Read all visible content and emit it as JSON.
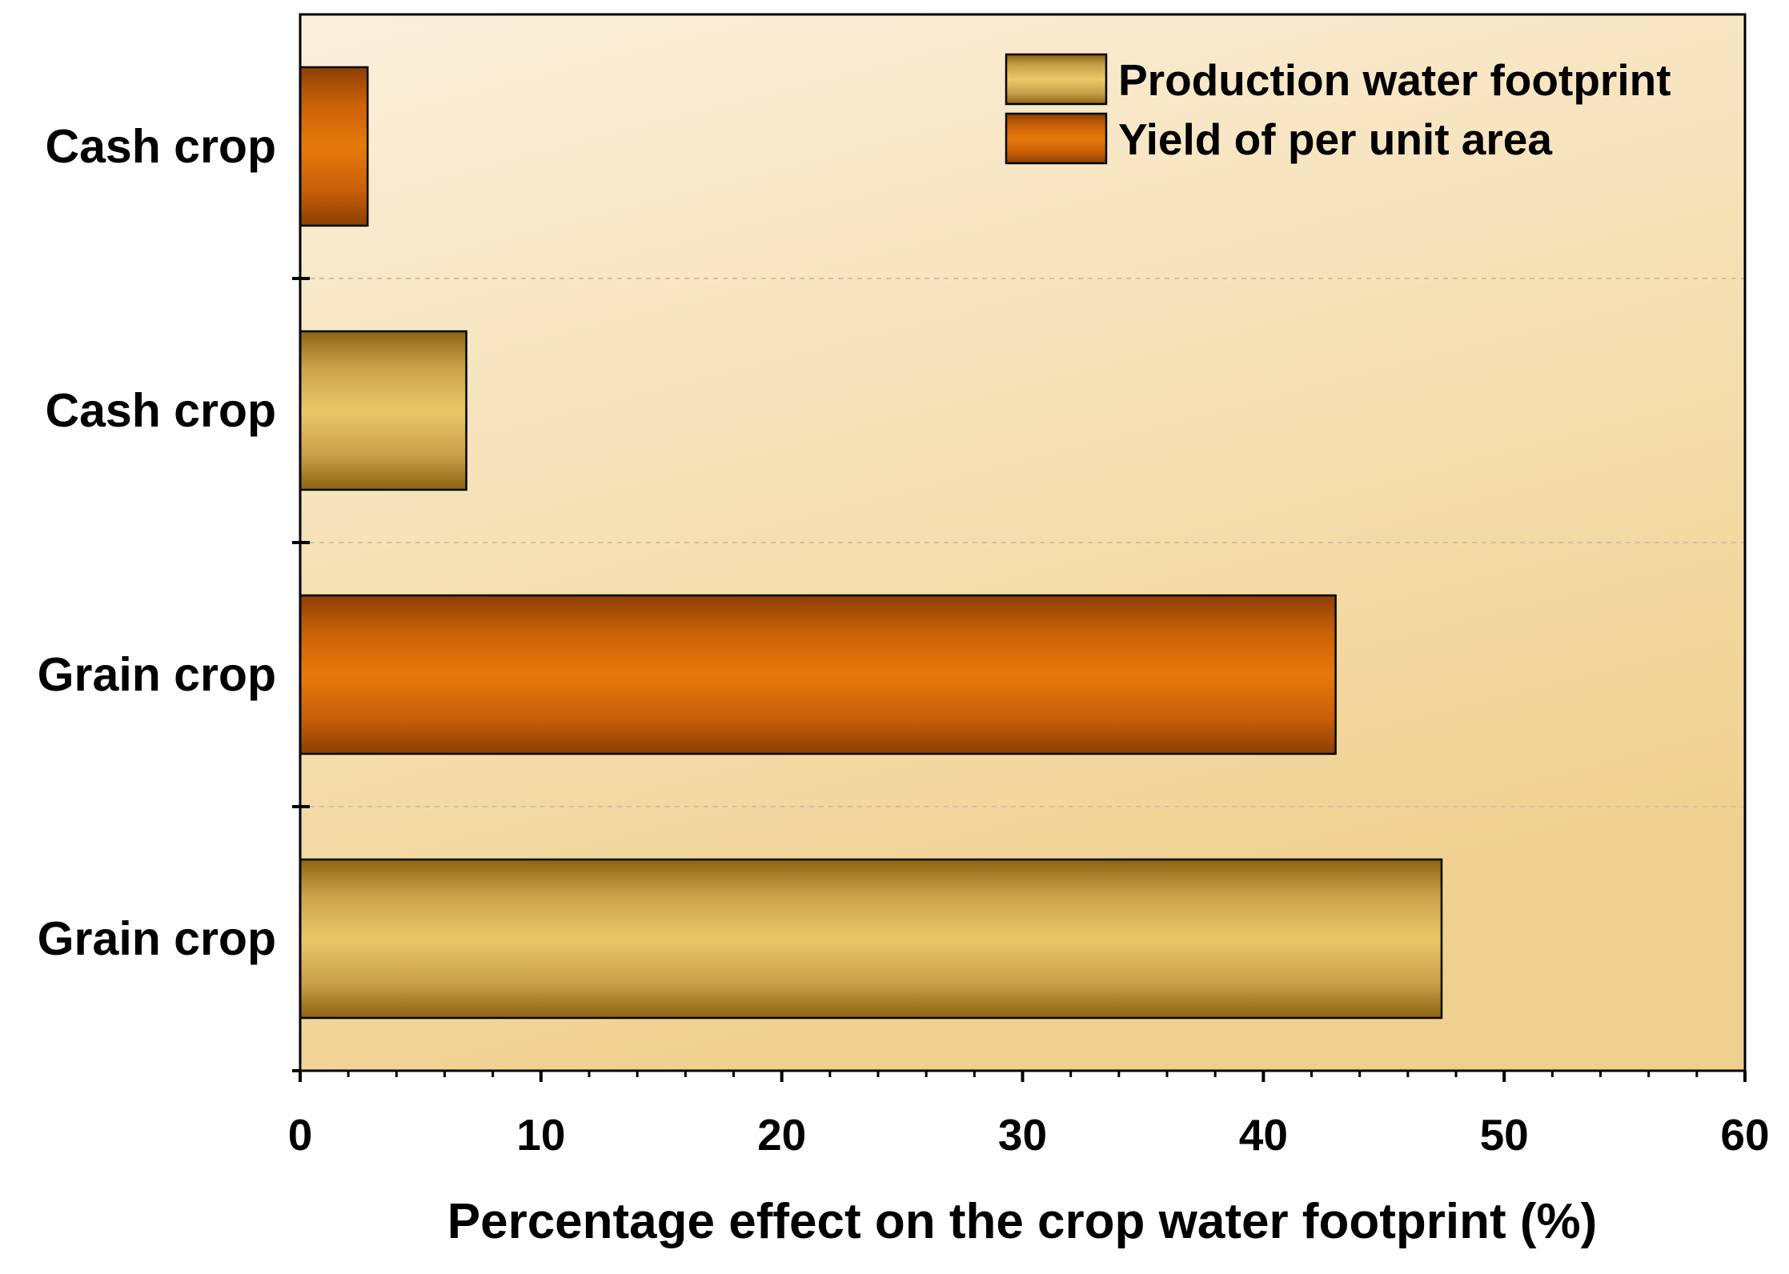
{
  "chart_data": {
    "type": "bar",
    "orientation": "horizontal",
    "title": "",
    "xlabel": "Percentage effect on the crop water footprint (%)",
    "ylabel": "",
    "xlim": [
      0,
      60
    ],
    "xticks": [
      0,
      10,
      20,
      30,
      40,
      50,
      60
    ],
    "categories": [
      "Cash crop",
      "Cash crop",
      "Grain crop",
      "Grain crop"
    ],
    "bars": [
      {
        "category": "Cash crop",
        "series": "Yield of per unit area",
        "value": 2.8
      },
      {
        "category": "Cash crop",
        "series": "Production water footprint",
        "value": 6.9
      },
      {
        "category": "Grain crop",
        "series": "Yield of per unit area",
        "value": 43.0
      },
      {
        "category": "Grain crop",
        "series": "Production water footprint",
        "value": 47.4
      }
    ],
    "series": [
      {
        "name": "Production water footprint",
        "color": "#e8c468"
      },
      {
        "name": "Yield of per unit area",
        "color": "#e87a0c"
      }
    ],
    "legend": {
      "position": "top-right"
    },
    "grid": "dashed horizontal separators"
  }
}
